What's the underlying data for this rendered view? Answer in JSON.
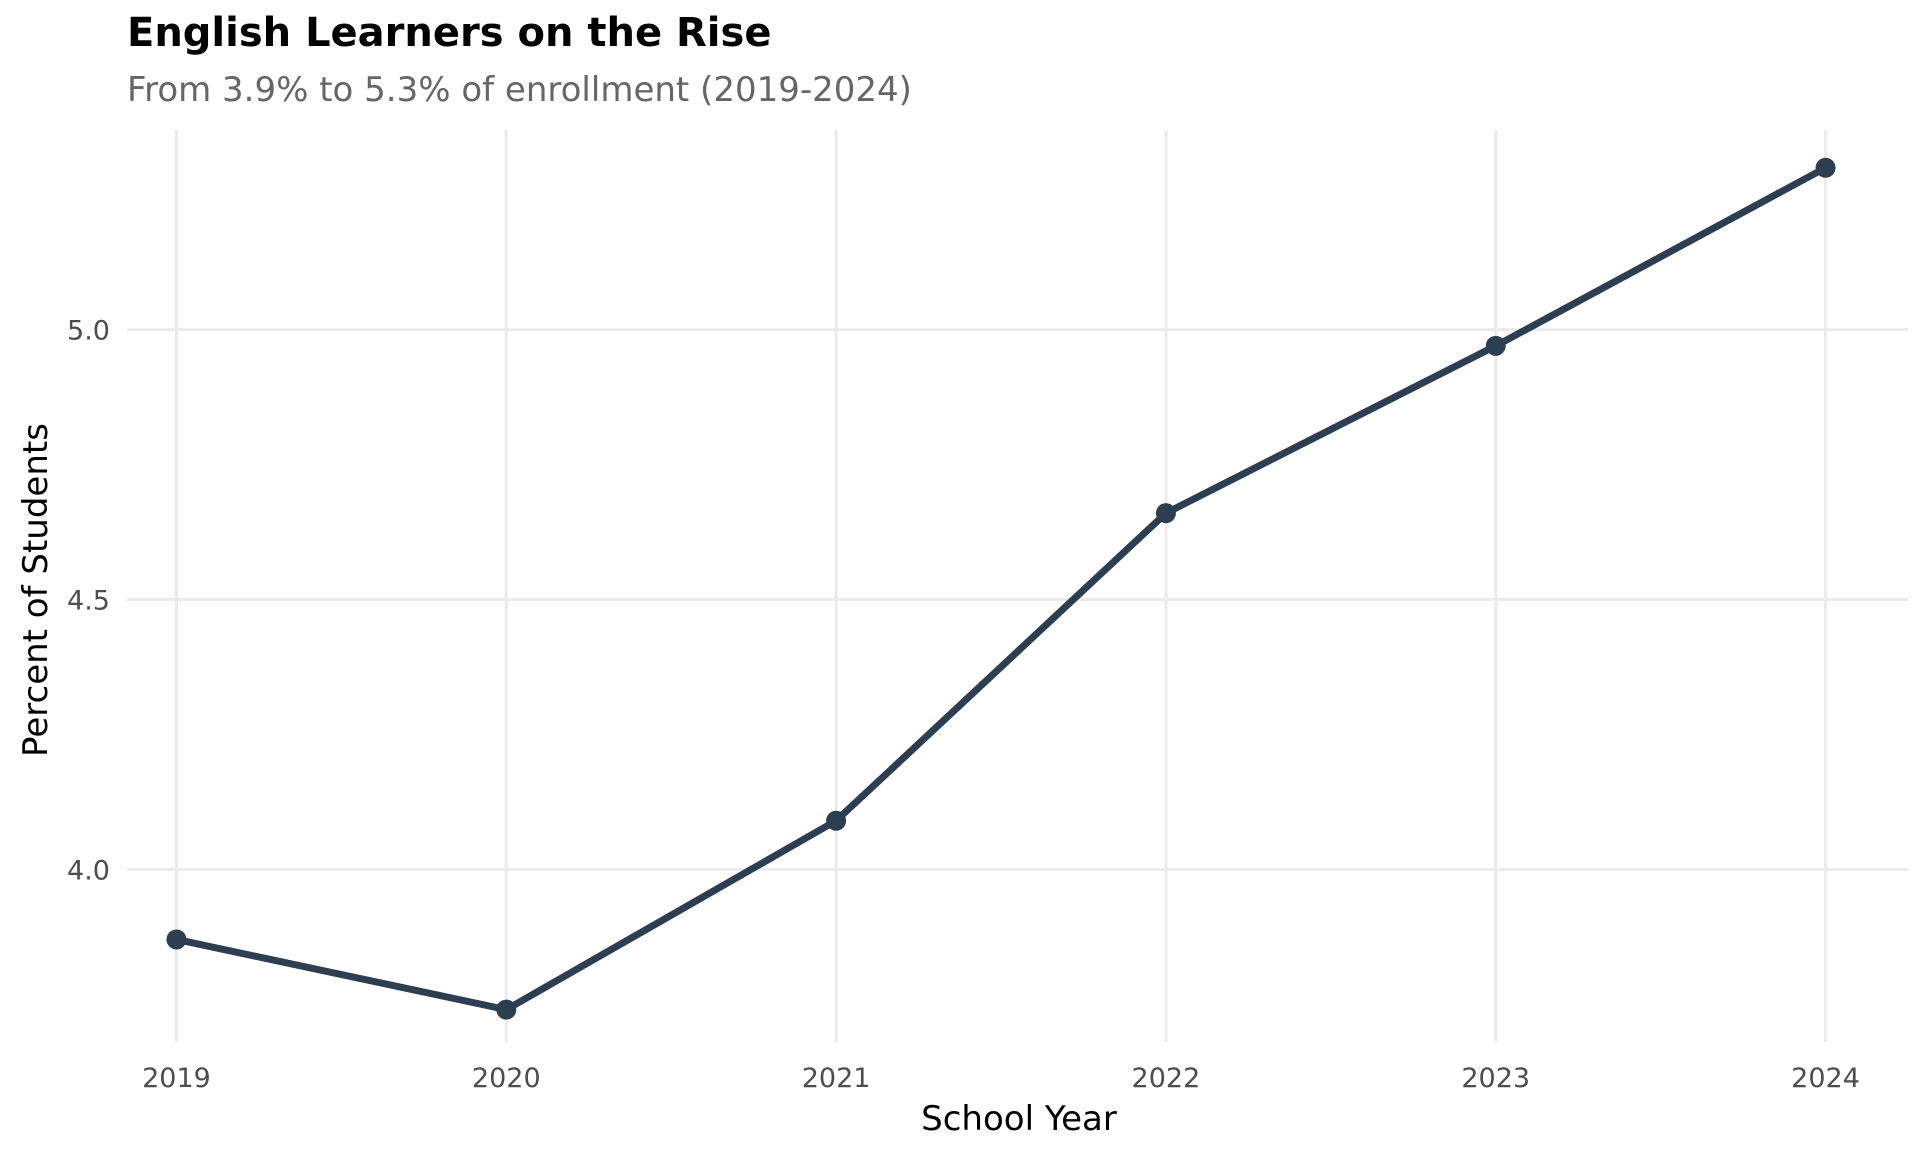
{
  "chart_data": {
    "type": "line",
    "title": "English Learners on the Rise",
    "subtitle": "From 3.9% to 5.3% of enrollment (2019-2024)",
    "xlabel": "School Year",
    "ylabel": "Percent of Students",
    "x": [
      2019,
      2020,
      2021,
      2022,
      2023,
      2024
    ],
    "x_tick_labels": [
      "2019",
      "2020",
      "2021",
      "2022",
      "2023",
      "2024"
    ],
    "y_tick_values": [
      4.0,
      4.5,
      5.0
    ],
    "y_tick_labels": [
      "4.0",
      "4.5",
      "5.0"
    ],
    "series": [
      {
        "values": [
          3.87,
          3.74,
          4.09,
          4.66,
          4.97,
          5.3
        ]
      }
    ],
    "ylim": [
      3.68,
      5.37
    ],
    "xlim": [
      2018.85,
      2024.25
    ],
    "grid": true,
    "legend": "none",
    "line_color": "#2d3e50",
    "grid_color": "#ebebeb"
  }
}
